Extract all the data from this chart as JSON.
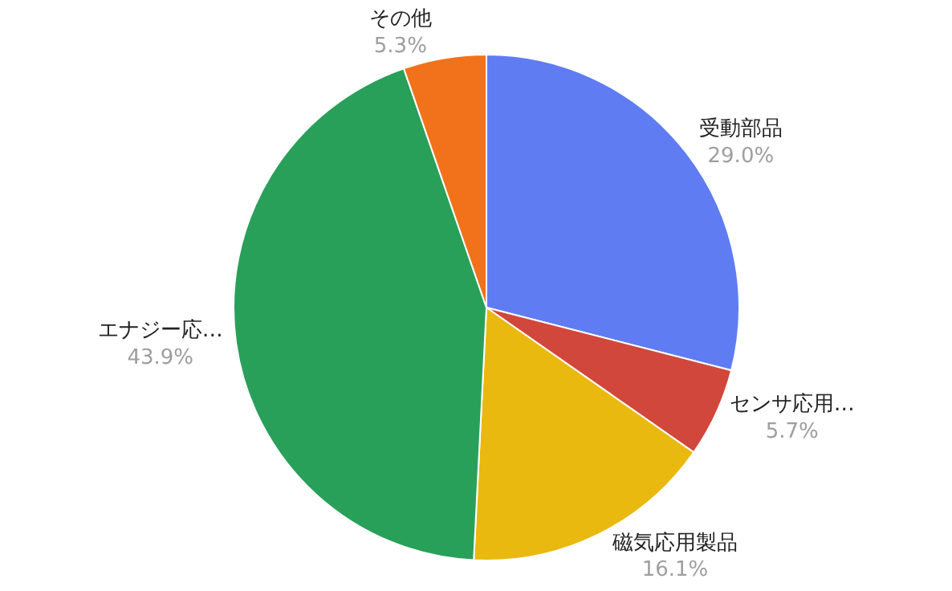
{
  "chart_data": {
    "type": "pie",
    "categories": [
      "受動部品",
      "センサ応用…",
      "磁気応用製品",
      "エナジー応…",
      "その他"
    ],
    "values": [
      29.0,
      5.7,
      16.1,
      43.9,
      5.3
    ],
    "value_labels": [
      "29.0%",
      "5.7%",
      "16.1%",
      "43.9%",
      "5.3%"
    ],
    "colors": [
      "#5f7cf2",
      "#d2473b",
      "#e9b90f",
      "#29a05a",
      "#f2711b"
    ],
    "legend": false
  }
}
